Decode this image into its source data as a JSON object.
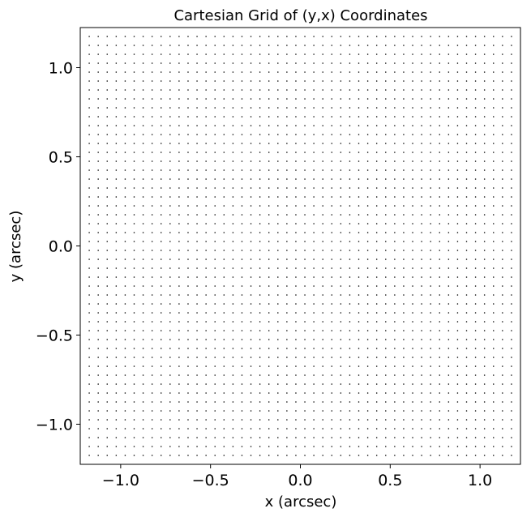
{
  "chart_data": {
    "type": "scatter",
    "title": "Cartesian Grid of (y,x) Coordinates",
    "xlabel": "x (arcsec)",
    "ylabel": "y (arcsec)",
    "xlim": [
      -1.225,
      1.225
    ],
    "ylim": [
      -1.225,
      1.225
    ],
    "xticks": [
      -1.0,
      -0.5,
      0.0,
      0.5,
      1.0
    ],
    "xtick_labels": [
      "−1.0",
      "−0.5",
      "0.0",
      "0.5",
      "1.0"
    ],
    "yticks": [
      -1.0,
      -0.5,
      0.0,
      0.5,
      1.0
    ],
    "ytick_labels": [
      "−1.0",
      "−0.5",
      "0.0",
      "0.5",
      "1.0"
    ],
    "grid_points": {
      "x_min": -1.175,
      "x_max": 1.175,
      "x_count": 48,
      "y_min": -1.175,
      "y_max": 1.175,
      "y_count": 48
    },
    "grid": false,
    "marker_color": "#000000"
  }
}
